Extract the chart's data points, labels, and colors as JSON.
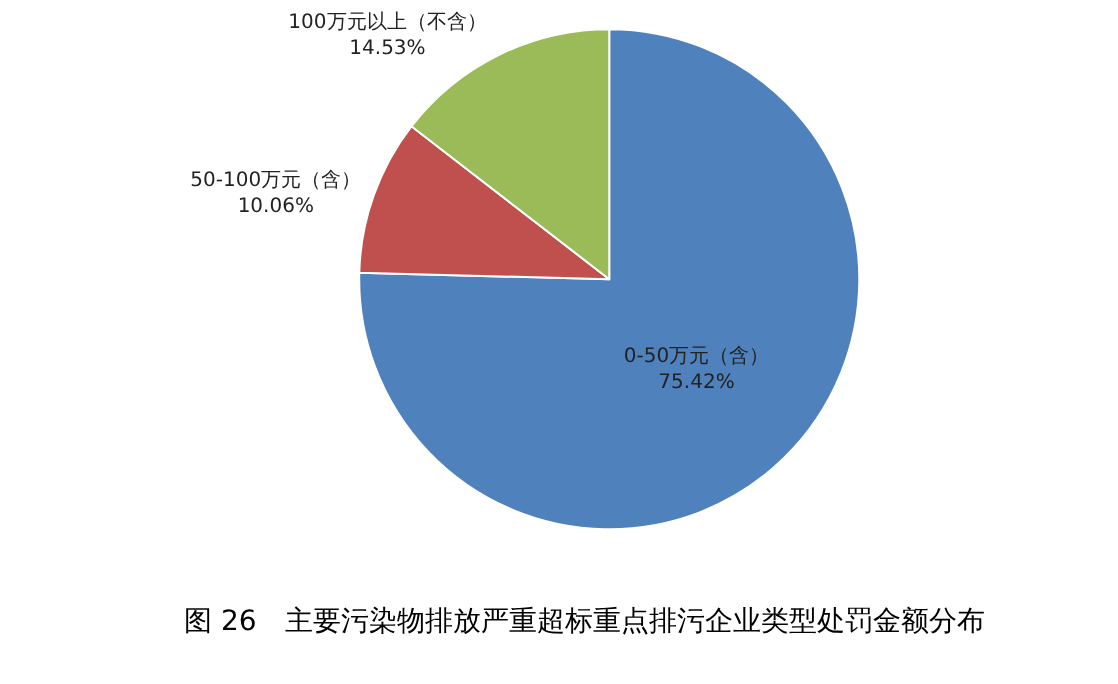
{
  "chart_data": {
    "type": "pie",
    "title": "图 26　主要污染物排放严重超标重点排污企业类型处罚金额分布",
    "categories": [
      "0-50万元（含）",
      "50-100万元（含）",
      "100万元以上（不含）"
    ],
    "values": [
      75.42,
      10.06,
      14.53
    ],
    "value_labels": [
      "75.42%",
      "10.06%",
      "14.53%"
    ],
    "colors": [
      "#4f81bd",
      "#c0504d",
      "#9bbb59"
    ],
    "legend": false
  }
}
